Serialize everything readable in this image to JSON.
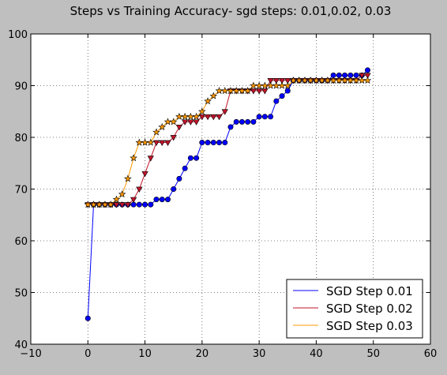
{
  "chart_data": {
    "type": "line",
    "title": "Steps vs Training Accuracy- sgd steps: 0.01,0.02, 0.03",
    "xlabel": "",
    "ylabel": "",
    "xlim": [
      -10,
      60
    ],
    "ylim": [
      40,
      100
    ],
    "xticks": [
      -10,
      0,
      10,
      20,
      30,
      40,
      50,
      60
    ],
    "yticks": [
      40,
      50,
      60,
      70,
      80,
      90,
      100
    ],
    "xtick_labels": [
      "−10",
      "0",
      "10",
      "20",
      "30",
      "40",
      "50",
      "60"
    ],
    "ytick_labels": [
      "40",
      "50",
      "60",
      "70",
      "80",
      "90",
      "100"
    ],
    "grid": true,
    "legend_position": "bottom-right",
    "x": [
      0,
      1,
      2,
      3,
      4,
      5,
      6,
      7,
      8,
      9,
      10,
      11,
      12,
      13,
      14,
      15,
      16,
      17,
      18,
      19,
      20,
      21,
      22,
      23,
      24,
      25,
      26,
      27,
      28,
      29,
      30,
      31,
      32,
      33,
      34,
      35,
      36,
      37,
      38,
      39,
      40,
      41,
      42,
      43,
      44,
      45,
      46,
      47,
      48,
      49
    ],
    "series": [
      {
        "name": "SGD Step 0.01",
        "color": "#0000ff",
        "marker": "circle",
        "values": [
          45,
          67,
          67,
          67,
          67,
          67,
          67,
          67,
          67,
          67,
          67,
          67,
          68,
          68,
          68,
          70,
          72,
          74,
          76,
          76,
          79,
          79,
          79,
          79,
          79,
          82,
          83,
          83,
          83,
          83,
          84,
          84,
          84,
          87,
          88,
          89,
          91,
          91,
          91,
          91,
          91,
          91,
          91,
          92,
          92,
          92,
          92,
          92,
          92,
          93
        ]
      },
      {
        "name": "SGD Step 0.02",
        "color": "#c0142a",
        "marker": "triangle-down",
        "values": [
          67,
          67,
          67,
          67,
          67,
          67,
          67,
          67,
          68,
          70,
          73,
          76,
          79,
          79,
          79,
          80,
          82,
          83,
          83,
          83,
          84,
          84,
          84,
          84,
          85,
          89,
          89,
          89,
          89,
          89,
          89,
          89,
          91,
          91,
          91,
          91,
          91,
          91,
          91,
          91,
          91,
          91,
          91,
          91,
          91,
          91,
          91,
          91,
          92,
          92
        ]
      },
      {
        "name": "SGD Step 0.03",
        "color": "#ff9900",
        "marker": "star",
        "values": [
          67,
          67,
          67,
          67,
          67,
          68,
          69,
          72,
          76,
          79,
          79,
          79,
          81,
          82,
          83,
          83,
          84,
          84,
          84,
          84,
          85,
          87,
          88,
          89,
          89,
          89,
          89,
          89,
          89,
          90,
          90,
          90,
          90,
          90,
          90,
          90,
          91,
          91,
          91,
          91,
          91,
          91,
          91,
          91,
          91,
          91,
          91,
          91,
          91,
          91
        ]
      }
    ]
  }
}
